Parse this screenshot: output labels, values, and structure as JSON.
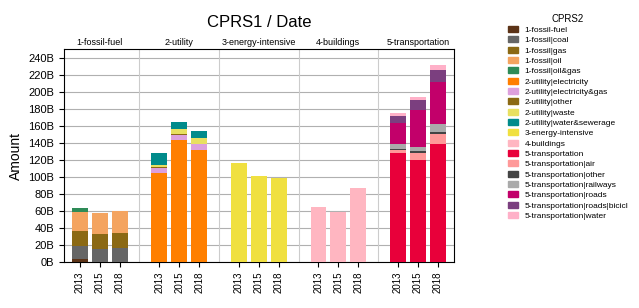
{
  "chart_data": {
    "type": "bar",
    "stacked": true,
    "title": "CPRS1 / Date",
    "y_label": "Amount",
    "legend_title": "CPRS2",
    "legend": "upper right",
    "grid": true,
    "groups": [
      {
        "name": "1-fossil-fuel",
        "categories": [
          "2013",
          "2015",
          "2018"
        ]
      },
      {
        "name": "2-utility",
        "categories": [
          "2013",
          "2015",
          "2018"
        ]
      },
      {
        "name": "3-energy-intensive",
        "categories": [
          "2013",
          "2015",
          "2018"
        ]
      },
      {
        "name": "4-buildings",
        "categories": [
          "2013",
          "2015",
          "2018"
        ]
      },
      {
        "name": "5-transportation",
        "categories": [
          "2013",
          "2015",
          "2018"
        ]
      }
    ],
    "series": [
      {
        "name": "1-fossil-fuel",
        "color": "#5C3317",
        "values": [
          3,
          0,
          0,
          0,
          0,
          0,
          0,
          0,
          0,
          0,
          0,
          0,
          0,
          0,
          0
        ]
      },
      {
        "name": "1-fossil|coal",
        "color": "#666666",
        "values": [
          15,
          15,
          16,
          0,
          0,
          0,
          0,
          0,
          0,
          0,
          0,
          0,
          0,
          0,
          0
        ]
      },
      {
        "name": "1-fossil|gas",
        "color": "#8B6914",
        "values": [
          18,
          18,
          18,
          0,
          0,
          0,
          0,
          0,
          0,
          0,
          0,
          0,
          0,
          0,
          0
        ]
      },
      {
        "name": "1-fossil|oil",
        "color": "#F4A460",
        "values": [
          23,
          24,
          26,
          0,
          0,
          0,
          0,
          0,
          0,
          0,
          0,
          0,
          0,
          0,
          0
        ]
      },
      {
        "name": "1-fossil|oil&gas",
        "color": "#2E8B57",
        "values": [
          4,
          0,
          0,
          0,
          0,
          0,
          0,
          0,
          0,
          0,
          0,
          0,
          0,
          0,
          0
        ]
      },
      {
        "name": "2-utility|electricity",
        "color": "#FF7F00",
        "values": [
          0,
          0,
          0,
          105,
          143,
          132,
          0,
          0,
          0,
          0,
          0,
          0,
          0,
          0,
          0
        ]
      },
      {
        "name": "2-utility|electricity&gas",
        "color": "#DDA0DD",
        "values": [
          0,
          0,
          0,
          5,
          6,
          6,
          0,
          0,
          0,
          0,
          0,
          0,
          0,
          0,
          0
        ]
      },
      {
        "name": "2-utility|other",
        "color": "#8B6914",
        "values": [
          0,
          0,
          0,
          1,
          1,
          1,
          0,
          0,
          0,
          0,
          0,
          0,
          0,
          0,
          0
        ]
      },
      {
        "name": "2-utility|waste",
        "color": "#E8E060",
        "values": [
          0,
          0,
          0,
          3,
          6,
          7,
          0,
          0,
          0,
          0,
          0,
          0,
          0,
          0,
          0
        ]
      },
      {
        "name": "2-utility|water&sewerage",
        "color": "#008B8B",
        "values": [
          0,
          0,
          0,
          14,
          8,
          8,
          0,
          0,
          0,
          0,
          0,
          0,
          0,
          0,
          0
        ]
      },
      {
        "name": "3-energy-intensive",
        "color": "#F0E040",
        "values": [
          0,
          0,
          0,
          0,
          0,
          0,
          116,
          101,
          98,
          0,
          0,
          0,
          0,
          0,
          0
        ]
      },
      {
        "name": "4-buildings",
        "color": "#FFB6C1",
        "values": [
          0,
          0,
          0,
          0,
          0,
          0,
          0,
          0,
          0,
          65,
          59,
          87,
          0,
          0,
          0
        ]
      },
      {
        "name": "5-transportation",
        "color": "#E8003A",
        "values": [
          0,
          0,
          0,
          0,
          0,
          0,
          0,
          0,
          0,
          0,
          0,
          0,
          128,
          120,
          138
        ]
      },
      {
        "name": "5-transportation|air",
        "color": "#FF9999",
        "values": [
          0,
          0,
          0,
          0,
          0,
          0,
          0,
          0,
          0,
          0,
          0,
          0,
          3,
          8,
          12
        ]
      },
      {
        "name": "5-transportation|other",
        "color": "#444444",
        "values": [
          0,
          0,
          0,
          0,
          0,
          0,
          0,
          0,
          0,
          0,
          0,
          0,
          2,
          2,
          3
        ]
      },
      {
        "name": "5-transportation|railways",
        "color": "#AAAAAA",
        "values": [
          0,
          0,
          0,
          0,
          0,
          0,
          0,
          0,
          0,
          0,
          0,
          0,
          5,
          5,
          9
        ]
      },
      {
        "name": "5-transportation|roads",
        "color": "#C2006A",
        "values": [
          0,
          0,
          0,
          0,
          0,
          0,
          0,
          0,
          0,
          0,
          0,
          0,
          25,
          43,
          50
        ]
      },
      {
        "name": "5-transportation|roads|bicicl",
        "color": "#7B3F7F",
        "values": [
          0,
          0,
          0,
          0,
          0,
          0,
          0,
          0,
          0,
          0,
          0,
          0,
          8,
          12,
          14
        ]
      },
      {
        "name": "5-transportation|water",
        "color": "#FFB0C8",
        "values": [
          0,
          0,
          0,
          0,
          0,
          0,
          0,
          0,
          0,
          0,
          0,
          0,
          4,
          4,
          5
        ]
      }
    ],
    "ylim": [
      0,
      250
    ],
    "yticks": [
      {
        "value": 0,
        "label": "0B"
      },
      {
        "value": 20,
        "label": "20B"
      },
      {
        "value": 40,
        "label": "40B"
      },
      {
        "value": 60,
        "label": "60B"
      },
      {
        "value": 80,
        "label": "80B"
      },
      {
        "value": 100,
        "label": "100B"
      },
      {
        "value": 120,
        "label": "120B"
      },
      {
        "value": 140,
        "label": "140B"
      },
      {
        "value": 160,
        "label": "160B"
      },
      {
        "value": 180,
        "label": "180B"
      },
      {
        "value": 200,
        "label": "200B"
      },
      {
        "value": 220,
        "label": "220B"
      },
      {
        "value": 240,
        "label": "240B"
      }
    ]
  }
}
